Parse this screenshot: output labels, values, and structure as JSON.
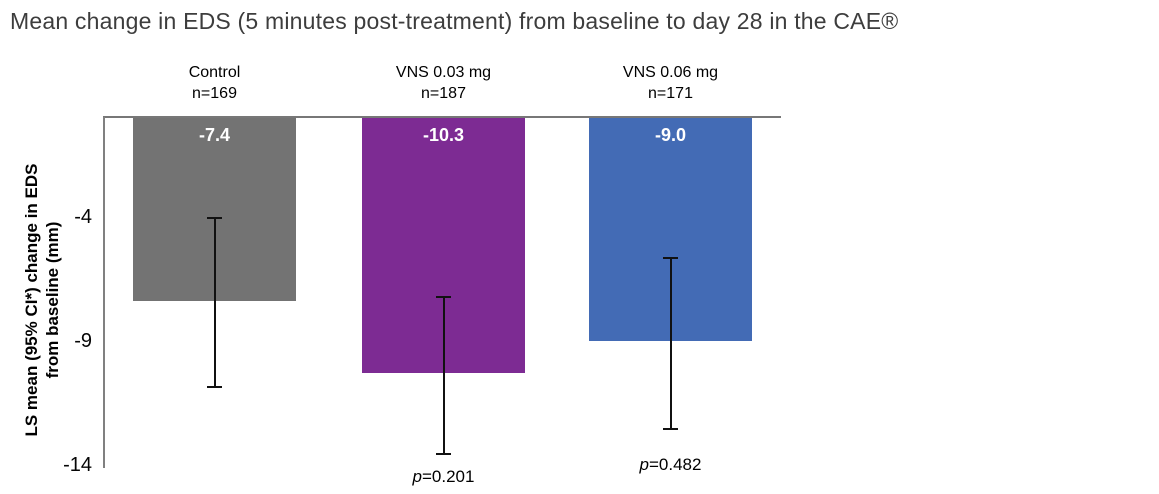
{
  "chart_data": {
    "type": "bar",
    "title": "Mean change in EDS (5 minutes post-treatment) from baseline to day 28 in the CAE®",
    "ylabel": "LS mean (95% CI*) change in EDS\nfrom baseline (mm)",
    "xlabel": "",
    "yticks": [
      -4,
      -9,
      -14
    ],
    "ylim": [
      0,
      -14.2
    ],
    "grid": false,
    "legend": false,
    "bar_value_labels_inside_top": true,
    "error_bars": "95% CI",
    "categories": [
      "Control",
      "VNS 0.03 mg",
      "VNS 0.06 mg"
    ],
    "groups": [
      {
        "label": "Control",
        "n_label": "n=169",
        "value": -7.4,
        "value_label": "-7.4",
        "ci_upper": -4.0,
        "ci_lower": -10.9,
        "color": "#737373",
        "p_prefix": "",
        "p_value": ""
      },
      {
        "label": "VNS 0.03 mg",
        "n_label": "n=187",
        "value": -10.3,
        "value_label": "-10.3",
        "ci_upper": -7.2,
        "ci_lower": -13.6,
        "color": "#7D2B93",
        "p_prefix": "p",
        "p_value": "=0.201"
      },
      {
        "label": "VNS 0.06 mg",
        "n_label": "n=171",
        "value": -9.0,
        "value_label": "-9.0",
        "ci_upper": -5.6,
        "ci_lower": -12.6,
        "color": "#436BB5",
        "p_prefix": "p",
        "p_value": "=0.482"
      }
    ],
    "colors": {
      "axis": "#808080",
      "error_bar": "#111111",
      "title_text": "#3d3d3d",
      "bar_label_text": "#ffffff"
    }
  }
}
